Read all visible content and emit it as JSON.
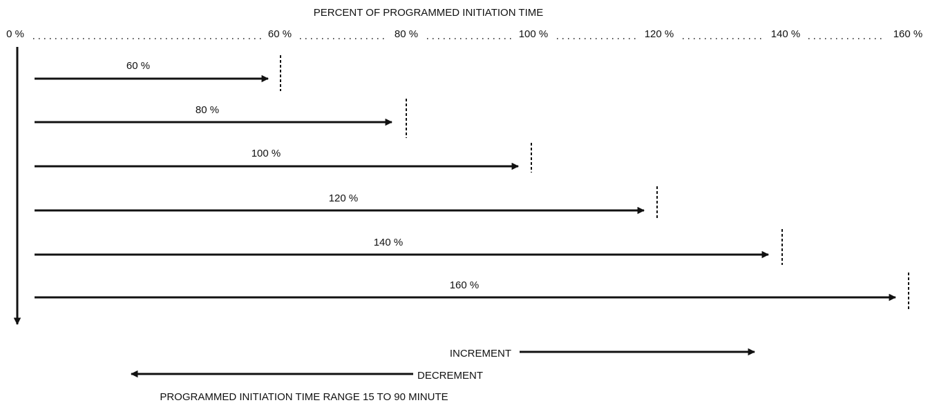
{
  "title": "PERCENT OF PROGRAMMED INITIATION TIME",
  "scale_labels": [
    "0 %",
    "60 %",
    "80 %",
    "100 %",
    "120 %",
    "140 %",
    "160 %"
  ],
  "arrows": [
    {
      "label": "60 %"
    },
    {
      "label": "80 %"
    },
    {
      "label": "100 %"
    },
    {
      "label": "120 %"
    },
    {
      "label": "140 %"
    },
    {
      "label": "160 %"
    }
  ],
  "increment": "INCREMENT",
  "decrement": "DECREMENT",
  "range_note": "PROGRAMMED INITIATION TIME RANGE 15 TO 90 MINUTE"
}
